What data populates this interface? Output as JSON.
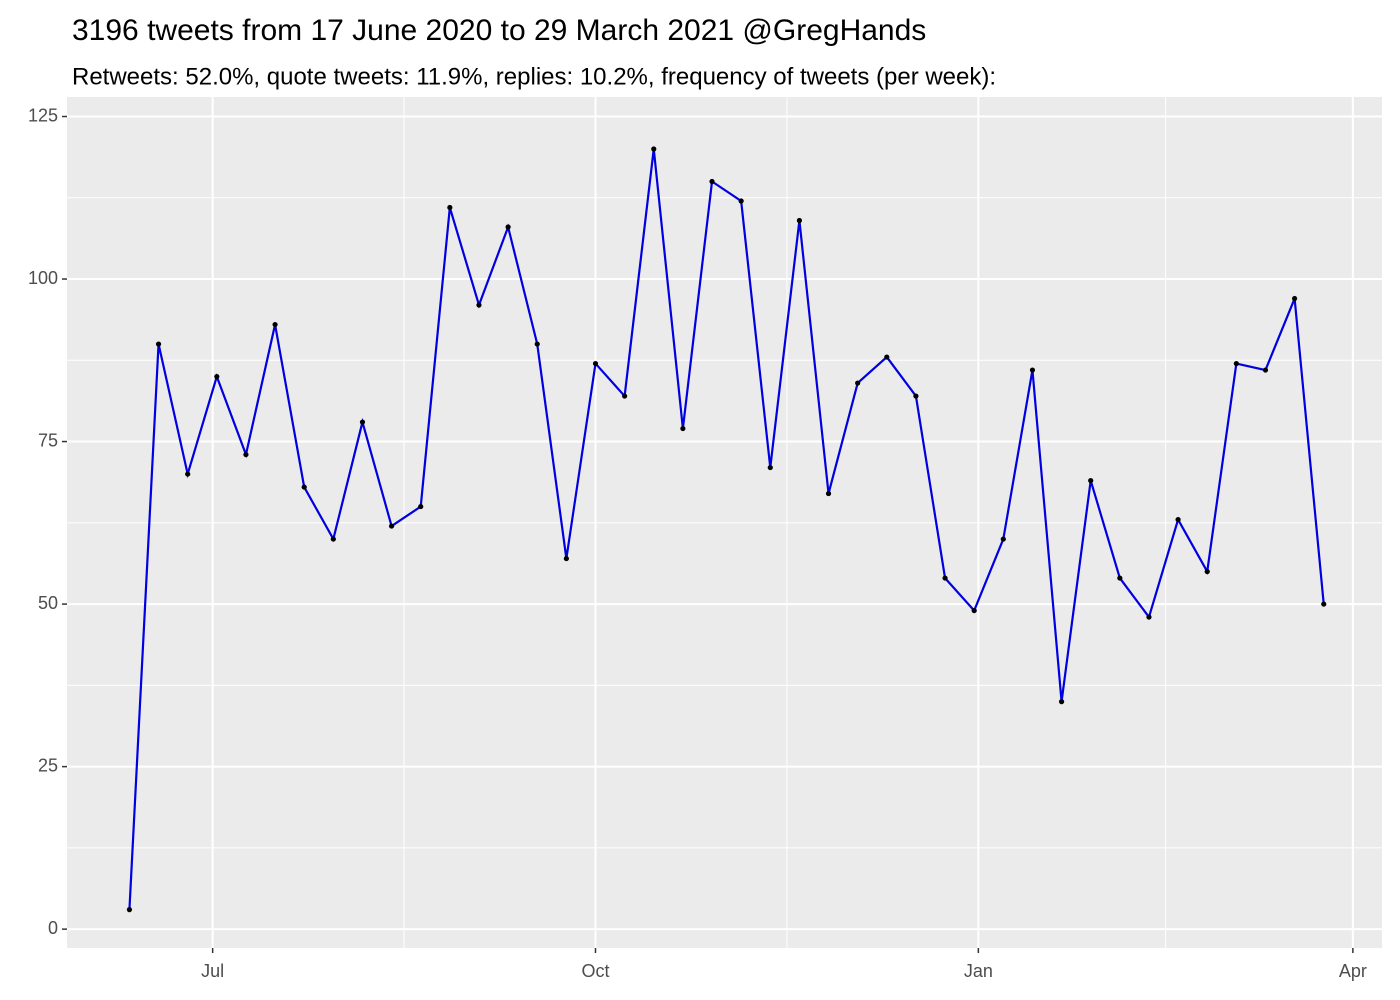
{
  "chart_data": {
    "type": "line",
    "title": "3196 tweets from 17 June 2020 to 29 March 2021 @GregHands",
    "subtitle": "Retweets: 52.0%, quote tweets: 11.9%, replies: 10.2%, frequency of tweets (per week):",
    "x": [
      162,
      169,
      176,
      183,
      190,
      197,
      204,
      211,
      218,
      225,
      232,
      239,
      246,
      253,
      260,
      267,
      274,
      281,
      288,
      295,
      302,
      309,
      316,
      323,
      330,
      337,
      344,
      351,
      358,
      365,
      372,
      379,
      386,
      393,
      400,
      407,
      414,
      421,
      428,
      435,
      442,
      449
    ],
    "values": [
      3,
      90,
      70,
      85,
      73,
      93,
      68,
      60,
      78,
      62,
      65,
      111,
      96,
      108,
      90,
      57,
      87,
      82,
      120,
      77,
      115,
      112,
      71,
      109,
      67,
      84,
      88,
      82,
      54,
      49,
      60,
      86,
      35,
      69,
      54,
      48,
      63,
      55,
      87,
      86,
      97,
      50
    ],
    "color": "#0000e0",
    "point_color": "#000000",
    "xlim": [
      147,
      463
    ],
    "xticks": [
      {
        "value": 182,
        "label": "Jul"
      },
      {
        "value": 274,
        "label": "Oct"
      },
      {
        "value": 366,
        "label": "Jan"
      },
      {
        "value": 456,
        "label": "Apr"
      }
    ],
    "ylim": [
      -2.9,
      128
    ],
    "yticks": [
      0,
      25,
      50,
      75,
      100,
      125
    ],
    "grid": true
  }
}
